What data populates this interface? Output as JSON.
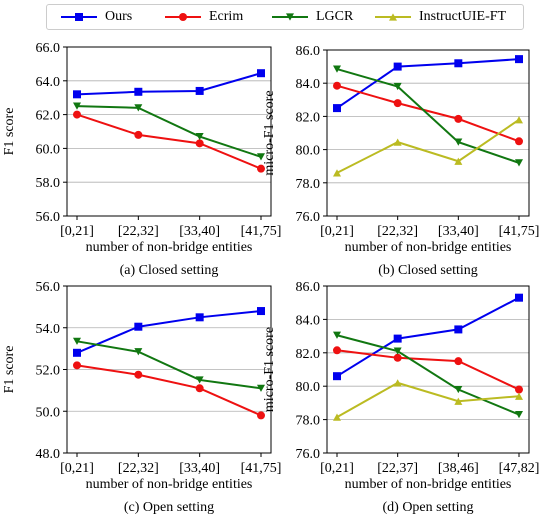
{
  "legend": [
    {
      "name": "Ours",
      "color": "#0000ee",
      "marker": "square"
    },
    {
      "name": "Ecrim",
      "color": "#ee1111",
      "marker": "circle"
    },
    {
      "name": "LGCR",
      "color": "#117711",
      "marker": "triangle-down"
    },
    {
      "name": "InstructUIE-FT",
      "color": "#bbbb22",
      "marker": "triangle-up"
    }
  ],
  "chart_data": [
    {
      "type": "line",
      "caption": "(a) Closed setting",
      "xlabel": "number of non-bridge entities",
      "ylabel": "F1 score",
      "categories": [
        "[0,21]",
        "[22,32]",
        "[33,40]",
        "[41,75]"
      ],
      "ylim": [
        56.0,
        66.0
      ],
      "yticks": [
        "56.0",
        "58.0",
        "60.0",
        "62.0",
        "64.0",
        "66.0"
      ],
      "grid": "horizontal",
      "series": [
        {
          "name": "Ours",
          "values": [
            63.2,
            63.35,
            63.4,
            64.45
          ]
        },
        {
          "name": "Ecrim",
          "values": [
            62.0,
            60.8,
            60.3,
            58.8
          ]
        },
        {
          "name": "LGCR",
          "values": [
            62.5,
            62.4,
            60.7,
            59.5
          ]
        }
      ]
    },
    {
      "type": "line",
      "caption": "(b) Closed setting",
      "xlabel": "number of non-bridge entities",
      "ylabel": "micro-F1 score",
      "categories": [
        "[0,21]",
        "[22,32]",
        "[33,40]",
        "[41,75]"
      ],
      "ylim": [
        76.0,
        86.0
      ],
      "yticks": [
        "76.0",
        "78.0",
        "80.0",
        "82.0",
        "84.0",
        "86.0"
      ],
      "grid": "horizontal",
      "series": [
        {
          "name": "Ours",
          "values": [
            82.5,
            85.0,
            85.2,
            85.45
          ]
        },
        {
          "name": "Ecrim",
          "values": [
            83.85,
            82.8,
            81.85,
            80.5
          ]
        },
        {
          "name": "LGCR",
          "values": [
            84.85,
            83.8,
            80.45,
            79.2
          ]
        },
        {
          "name": "InstructUIE-FT",
          "values": [
            78.6,
            80.45,
            79.3,
            81.8
          ]
        }
      ]
    },
    {
      "type": "line",
      "caption": "(c) Open setting",
      "xlabel": "number of non-bridge entities",
      "ylabel": "F1 score",
      "categories": [
        "[0,21]",
        "[22,32]",
        "[33,40]",
        "[41,75]"
      ],
      "ylim": [
        48.0,
        56.0
      ],
      "yticks": [
        "48.0",
        "50.0",
        "52.0",
        "54.0",
        "56.0"
      ],
      "grid": "horizontal",
      "series": [
        {
          "name": "Ours",
          "values": [
            52.8,
            54.05,
            54.5,
            54.8
          ]
        },
        {
          "name": "Ecrim",
          "values": [
            52.2,
            51.75,
            51.1,
            49.8
          ]
        },
        {
          "name": "LGCR",
          "values": [
            53.35,
            52.85,
            51.5,
            51.1
          ]
        }
      ]
    },
    {
      "type": "line",
      "caption": "(d) Open setting",
      "xlabel": "number of non-bridge entities",
      "ylabel": "micro-F1 score",
      "categories": [
        "[0,21]",
        "[22,37]",
        "[38,46]",
        "[47,82]"
      ],
      "ylim": [
        76.0,
        86.0
      ],
      "yticks": [
        "76.0",
        "78.0",
        "80.0",
        "82.0",
        "84.0",
        "86.0"
      ],
      "grid": "horizontal",
      "series": [
        {
          "name": "Ours",
          "values": [
            80.6,
            82.85,
            83.4,
            85.3
          ]
        },
        {
          "name": "Ecrim",
          "values": [
            82.15,
            81.7,
            81.5,
            79.8
          ]
        },
        {
          "name": "LGCR",
          "values": [
            83.05,
            82.1,
            79.8,
            78.3
          ]
        },
        {
          "name": "InstructUIE-FT",
          "values": [
            78.15,
            80.2,
            79.1,
            79.4
          ]
        }
      ]
    }
  ]
}
